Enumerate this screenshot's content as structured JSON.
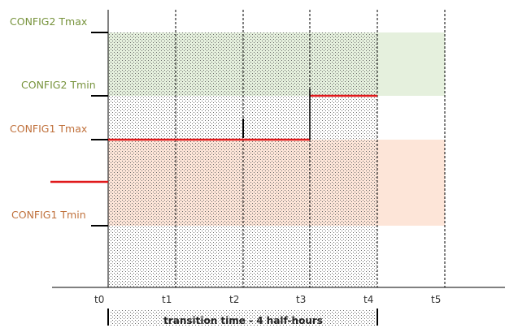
{
  "labels": {
    "config2_tmax": "CONFIG2 Tmax",
    "config2_tmin": "CONFIG2 Tmin",
    "config1_tmax": "CONFIG1 Tmax",
    "config1_tmin": "CONFIG1 Tmin"
  },
  "time_ticks": [
    "t0",
    "t1",
    "t2",
    "t3",
    "t4",
    "t5"
  ],
  "transition_caption": "transition time - 4 half-hours",
  "colors": {
    "config2_band": "#e5f0dd",
    "config1_band": "#fde5d8",
    "config2_text": "#77933c",
    "config1_text": "#c0713c",
    "setpoint_line": "#e0191b",
    "axis": "#000000"
  }
}
